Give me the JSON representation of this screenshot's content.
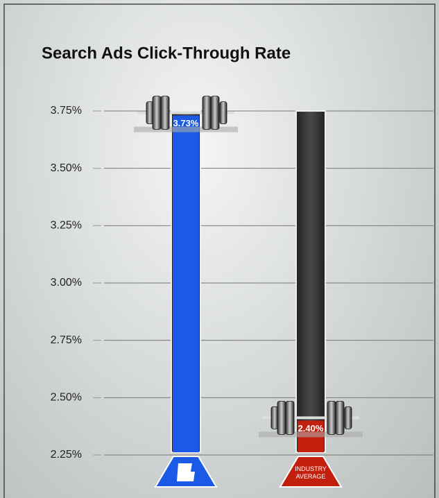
{
  "chart_data": {
    "type": "bar",
    "title": "Search Ads Click-Through Rate",
    "categories": [
      null,
      "INDUSTRY AVERAGE"
    ],
    "values": [
      3.73,
      2.4
    ],
    "value_labels": [
      "3.73%",
      "2.40%"
    ],
    "colors": [
      "#1a5ae6",
      "#c21f0c"
    ],
    "ylim": [
      2.25,
      3.75
    ],
    "yticks": [
      {
        "value": 2.25,
        "label": "2.25%"
      },
      {
        "value": 2.5,
        "label": "2.50%"
      },
      {
        "value": 2.75,
        "label": "2.75%"
      },
      {
        "value": 3.0,
        "label": "3.00%"
      },
      {
        "value": 3.25,
        "label": "3.25%"
      },
      {
        "value": 3.5,
        "label": "3.50%"
      },
      {
        "value": 3.75,
        "label": "3.75%"
      }
    ],
    "grid": true
  }
}
